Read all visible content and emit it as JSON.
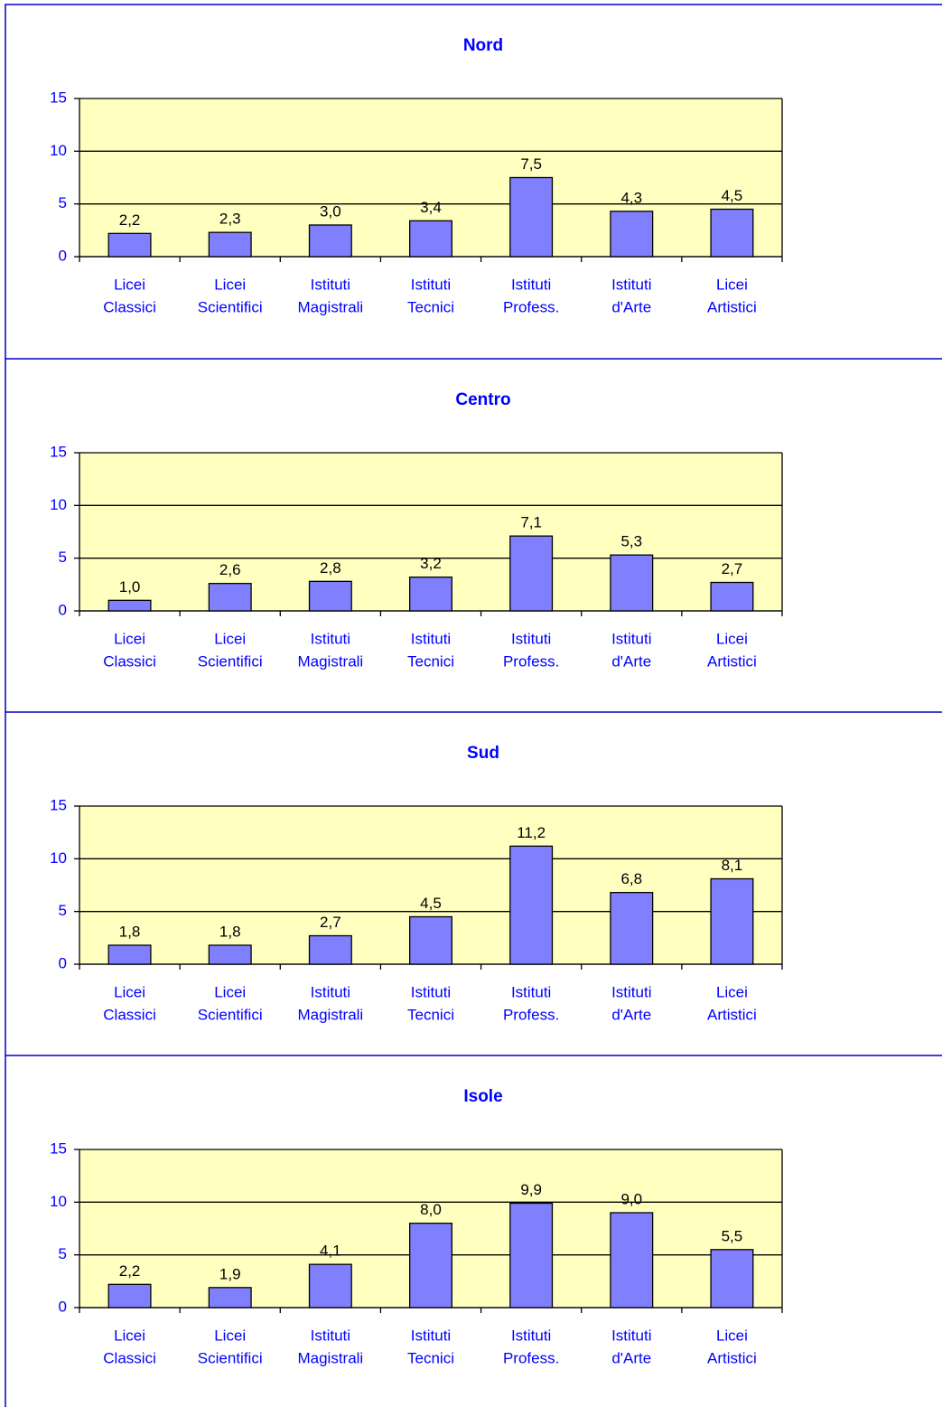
{
  "chart_data": [
    {
      "type": "bar",
      "title": "Nord",
      "categories": [
        [
          "Licei",
          "Classici"
        ],
        [
          "Licei",
          "Scientifici"
        ],
        [
          "Istituti",
          "Magistrali"
        ],
        [
          "Istituti",
          "Tecnici"
        ],
        [
          "Istituti",
          "Profess."
        ],
        [
          "Istituti",
          "d'Arte"
        ],
        [
          "Licei",
          "Artistici"
        ]
      ],
      "values": [
        2.2,
        2.3,
        3.0,
        3.4,
        7.5,
        4.3,
        4.5
      ],
      "value_labels": [
        "2,2",
        "2,3",
        "3,0",
        "3,4",
        "7,5",
        "4,3",
        "4,5"
      ],
      "color": "#8080ff",
      "ylim": [
        0,
        15
      ],
      "yticks": [
        0,
        5,
        10,
        15
      ],
      "grid": true
    },
    {
      "type": "bar",
      "title": "Centro",
      "categories": [
        [
          "Licei",
          "Classici"
        ],
        [
          "Licei",
          "Scientifici"
        ],
        [
          "Istituti",
          "Magistrali"
        ],
        [
          "Istituti",
          "Tecnici"
        ],
        [
          "Istituti",
          "Profess."
        ],
        [
          "Istituti",
          "d'Arte"
        ],
        [
          "Licei",
          "Artistici"
        ]
      ],
      "values": [
        1.0,
        2.6,
        2.8,
        3.2,
        7.1,
        5.3,
        2.7
      ],
      "value_labels": [
        "1,0",
        "2,6",
        "2,8",
        "3,2",
        "7,1",
        "5,3",
        "2,7"
      ],
      "color": "#8080ff",
      "ylim": [
        0,
        15
      ],
      "yticks": [
        0,
        5,
        10,
        15
      ],
      "grid": true
    },
    {
      "type": "bar",
      "title": "Sud",
      "categories": [
        [
          "Licei",
          "Classici"
        ],
        [
          "Licei",
          "Scientifici"
        ],
        [
          "Istituti",
          "Magistrali"
        ],
        [
          "Istituti",
          "Tecnici"
        ],
        [
          "Istituti",
          "Profess."
        ],
        [
          "Istituti",
          "d'Arte"
        ],
        [
          "Licei",
          "Artistici"
        ]
      ],
      "values": [
        1.8,
        1.8,
        2.7,
        4.5,
        11.2,
        6.8,
        8.1
      ],
      "value_labels": [
        "1,8",
        "1,8",
        "2,7",
        "4,5",
        "11,2",
        "6,8",
        "8,1"
      ],
      "color": "#8080ff",
      "ylim": [
        0,
        15
      ],
      "yticks": [
        0,
        5,
        10,
        15
      ],
      "grid": true
    },
    {
      "type": "bar",
      "title": "Isole",
      "categories": [
        [
          "Licei",
          "Classici"
        ],
        [
          "Licei",
          "Scientifici"
        ],
        [
          "Istituti",
          "Magistrali"
        ],
        [
          "Istituti",
          "Tecnici"
        ],
        [
          "Istituti",
          "Profess."
        ],
        [
          "Istituti",
          "d'Arte"
        ],
        [
          "Licei",
          "Artistici"
        ]
      ],
      "values": [
        2.2,
        1.9,
        4.1,
        8.0,
        9.9,
        9.0,
        5.5
      ],
      "value_labels": [
        "2,2",
        "1,9",
        "4,1",
        "8,0",
        "9,9",
        "9,0",
        "5,5"
      ],
      "color": "#8080ff",
      "ylim": [
        0,
        15
      ],
      "yticks": [
        0,
        5,
        10,
        15
      ],
      "grid": true
    }
  ]
}
